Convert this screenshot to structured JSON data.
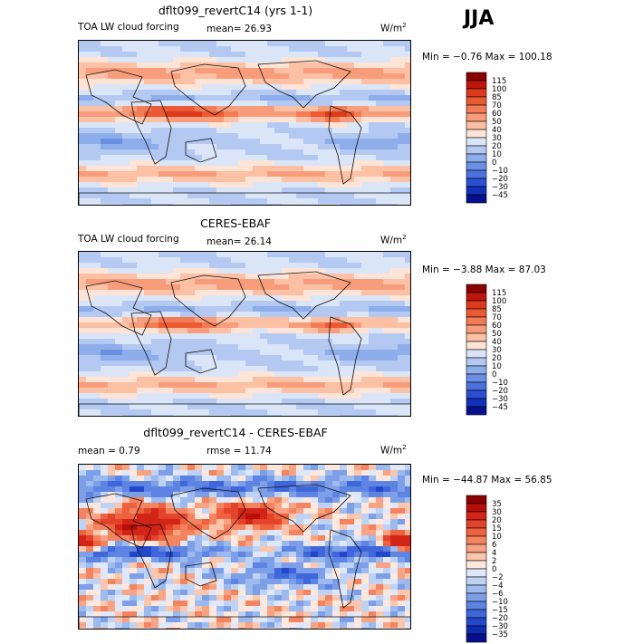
{
  "season": "JJA",
  "scales": {
    "abs": {
      "levels": [
        "115",
        "100",
        "85",
        "70",
        "60",
        "50",
        "40",
        "30",
        "20",
        "10",
        "0",
        "−10",
        "−20",
        "−30",
        "−45"
      ],
      "colors": [
        "#8b0000",
        "#c0150b",
        "#dc3a1c",
        "#eb5a32",
        "#f27c55",
        "#f79d7c",
        "#fcc0a4",
        "#fde4d6",
        "#dbe5f8",
        "#b4c9f2",
        "#8eadeb",
        "#6a90e4",
        "#4a72de",
        "#2a4fd2",
        "#1230b8",
        "#06108e"
      ]
    },
    "diff": {
      "levels": [
        "35",
        "30",
        "20",
        "15",
        "10",
        "6",
        "4",
        "2",
        "0",
        "−2",
        "−4",
        "−6",
        "−10",
        "−15",
        "−20",
        "−30",
        "−35"
      ],
      "colors": [
        "#8b0000",
        "#b80e08",
        "#d32418",
        "#e3432a",
        "#ee6240",
        "#f4835f",
        "#f8a383",
        "#fcc6ad",
        "#fee7dc",
        "#dfe8fa",
        "#bed2f4",
        "#9dbaee",
        "#7d9fe8",
        "#5d84e2",
        "#3f66da",
        "#2347cb",
        "#0f2aad",
        "#06108e"
      ]
    }
  },
  "panels": [
    {
      "title": "dflt099_revertC14 (yrs 1-1)",
      "variable": "TOA LW cloud forcing",
      "stat1": "mean=  26.93",
      "stat2": "",
      "units": "W/m",
      "units_sup": "2",
      "minmax": "Min =  −0.76 Max = 100.18",
      "scale": "abs"
    },
    {
      "title": "CERES-EBAF",
      "variable": "TOA LW cloud forcing",
      "stat1": "mean=  26.14",
      "stat2": "",
      "units": "W/m",
      "units_sup": "2",
      "minmax": "Min =  −3.88 Max =  87.03",
      "scale": "abs"
    },
    {
      "title": "dflt099_revertC14 - CERES-EBAF",
      "variable": "mean =    0.79",
      "stat1": "rmse =  11.74",
      "stat2": "",
      "units": "W/m",
      "units_sup": "2",
      "minmax": "Min = −44.87 Max =  56.85",
      "scale": "diff"
    }
  ],
  "chart_data": [
    {
      "type": "heatmap",
      "title": "dflt099_revertC14 (yrs 1-1)",
      "field": "TOA LW cloud forcing",
      "units": "W/m2",
      "season": "JJA",
      "mean": 26.93,
      "min": -0.76,
      "max": 100.18,
      "contour_levels": [
        -45,
        -30,
        -20,
        -10,
        0,
        10,
        20,
        30,
        40,
        50,
        60,
        70,
        85,
        100,
        115
      ]
    },
    {
      "type": "heatmap",
      "title": "CERES-EBAF",
      "field": "TOA LW cloud forcing",
      "units": "W/m2",
      "season": "JJA",
      "mean": 26.14,
      "min": -3.88,
      "max": 87.03,
      "contour_levels": [
        -45,
        -30,
        -20,
        -10,
        0,
        10,
        20,
        30,
        40,
        50,
        60,
        70,
        85,
        100,
        115
      ]
    },
    {
      "type": "heatmap",
      "title": "dflt099_revertC14 - CERES-EBAF",
      "units": "W/m2",
      "season": "JJA",
      "mean": 0.79,
      "rmse": 11.74,
      "min": -44.87,
      "max": 56.85,
      "contour_levels": [
        -35,
        -30,
        -20,
        -15,
        -10,
        -6,
        -4,
        -2,
        0,
        2,
        4,
        6,
        10,
        15,
        20,
        30,
        35
      ]
    }
  ]
}
